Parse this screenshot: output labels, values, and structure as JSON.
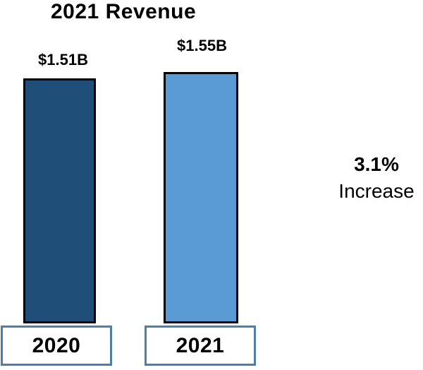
{
  "chart_data": {
    "type": "bar",
    "title": "2021 Revenue",
    "categories": [
      "2020",
      "2021"
    ],
    "values": [
      1.51,
      1.55
    ],
    "data_labels": [
      "$1.51B",
      "$1.55B"
    ],
    "annotation": {
      "percent": "3.1%",
      "word": "Increase"
    },
    "xlabel": "",
    "ylabel": "",
    "ylim": [
      0,
      1.6
    ],
    "grid": false,
    "legend": false,
    "axes_visible": false,
    "colors": {
      "bars": [
        "#1F4E79",
        "#5B9BD5"
      ],
      "bar_border": "#000000",
      "year_box_border": "#4E7FA8",
      "text": "#000000",
      "background": "#FFFFFF"
    }
  }
}
